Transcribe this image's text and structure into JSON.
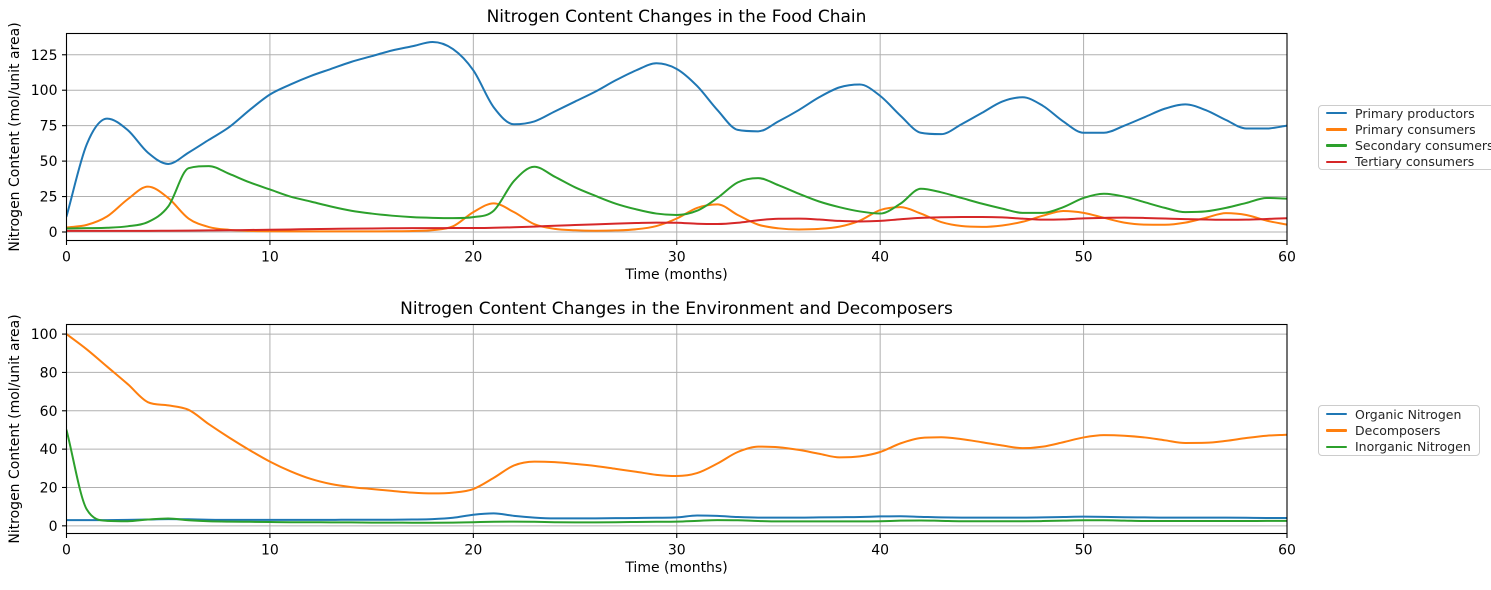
{
  "figure": {
    "background": "#ffffff",
    "grid_color": "#b0b0b0",
    "spine_color": "#000000"
  },
  "chart_data": [
    {
      "type": "line",
      "title": "Nitrogen Content Changes in the Food Chain",
      "xlabel": "Time (months)",
      "ylabel": "Nitrogen Content (mol/unit area)",
      "xlim": [
        0,
        60
      ],
      "ylim": [
        -6,
        140
      ],
      "xticks": [
        0,
        10,
        20,
        30,
        40,
        50,
        60
      ],
      "yticks": [
        0,
        25,
        50,
        75,
        100,
        125
      ],
      "grid": true,
      "legend_position": "right-outside",
      "x_start": 0,
      "x_step": 1,
      "series": [
        {
          "name": "Primary productors",
          "color": "#1f77b4",
          "values": [
            11,
            62,
            80,
            72,
            56,
            48,
            56,
            65,
            74,
            86,
            97,
            104,
            110,
            115,
            120,
            124,
            128,
            131,
            134,
            129,
            114,
            88,
            76,
            78,
            85,
            92,
            99,
            107,
            114,
            119,
            115,
            103,
            86,
            72,
            71,
            78,
            86,
            95,
            102,
            104,
            96,
            82,
            70,
            69,
            76,
            84,
            92,
            95,
            89,
            78,
            70,
            70,
            75,
            81,
            87,
            90,
            86,
            79,
            73,
            73,
            75
          ]
        },
        {
          "name": "Primary consumers",
          "color": "#ff7f0e",
          "values": [
            3.2,
            5,
            11,
            23,
            32,
            24,
            9.5,
            3.5,
            1.5,
            0.8,
            0.5,
            0.4,
            0.4,
            0.4,
            0.4,
            0.4,
            0.5,
            0.7,
            1.3,
            4,
            14,
            20.2,
            14,
            5.5,
            2.2,
            1.2,
            0.9,
            1.1,
            1.9,
            4.2,
            9.5,
            17,
            19.5,
            12,
            5.2,
            2.6,
            1.8,
            2.2,
            3.8,
            8,
            15.5,
            17.5,
            13,
            7,
            4.2,
            3.6,
            4.6,
            7.2,
            11.5,
            14.8,
            13.5,
            10,
            6.6,
            5.2,
            5.1,
            6.6,
            10,
            13.3,
            12,
            8,
            5.2
          ]
        },
        {
          "name": "Secondary consumers",
          "color": "#2ca02c",
          "values": [
            2.5,
            2.7,
            3,
            4,
            7,
            18,
            45,
            46.5,
            41,
            35,
            30,
            25,
            21.5,
            18,
            15,
            13,
            11.5,
            10.5,
            10,
            9.8,
            10.5,
            15,
            36,
            46,
            39,
            31.5,
            25.5,
            20,
            16,
            13,
            12,
            15,
            24,
            35,
            38,
            33,
            27,
            21.5,
            17.5,
            14.5,
            13,
            20,
            30.5,
            28,
            24,
            20,
            16.5,
            13.5,
            13.5,
            17.5,
            24,
            27,
            25,
            21,
            17,
            14,
            14.5,
            17,
            20.5,
            24,
            23.5
          ]
        },
        {
          "name": "Tertiary consumers",
          "color": "#d62728",
          "values": [
            0.8,
            0.8,
            0.8,
            0.8,
            0.8,
            0.9,
            1,
            1.1,
            1.2,
            1.4,
            1.6,
            1.8,
            2,
            2.2,
            2.4,
            2.5,
            2.6,
            2.7,
            2.7,
            2.8,
            2.8,
            3,
            3.3,
            3.8,
            4.4,
            4.9,
            5.4,
            5.9,
            6.3,
            6.6,
            6.5,
            5.8,
            5.6,
            6.5,
            8.3,
            9.3,
            9.4,
            8.8,
            7.8,
            7.4,
            7.8,
            9,
            10,
            10.4,
            10.6,
            10.6,
            10.3,
            9.4,
            8.7,
            8.9,
            9.6,
            10,
            10.1,
            9.9,
            9.5,
            9.1,
            8.8,
            8.6,
            8.7,
            9.2,
            9.7
          ]
        }
      ]
    },
    {
      "type": "line",
      "title": "Nitrogen Content Changes in the Environment and Decomposers",
      "xlabel": "Time (months)",
      "ylabel": "Nitrogen Content (mol/unit area)",
      "xlim": [
        0,
        60
      ],
      "ylim": [
        -4,
        105
      ],
      "xticks": [
        0,
        10,
        20,
        30,
        40,
        50,
        60
      ],
      "yticks": [
        0,
        20,
        40,
        60,
        80,
        100
      ],
      "grid": true,
      "legend_position": "right-outside",
      "x_start": 0,
      "x_step": 1,
      "series": [
        {
          "name": "Organic Nitrogen",
          "color": "#1f77b4",
          "values": [
            3,
            3,
            3,
            3.1,
            3.3,
            3.5,
            3.4,
            3.2,
            3.1,
            3.1,
            3.1,
            3.1,
            3.1,
            3.1,
            3.2,
            3.2,
            3.2,
            3.3,
            3.5,
            4.2,
            5.8,
            6.5,
            5.2,
            4.3,
            3.9,
            3.9,
            3.9,
            4,
            4.1,
            4.2,
            4.4,
            5.4,
            5.2,
            4.6,
            4.3,
            4.3,
            4.3,
            4.4,
            4.5,
            4.6,
            4.9,
            5,
            4.7,
            4.4,
            4.3,
            4.3,
            4.3,
            4.3,
            4.4,
            4.6,
            4.8,
            4.7,
            4.5,
            4.4,
            4.3,
            4.3,
            4.3,
            4.3,
            4.2,
            4.1,
            4.1
          ]
        },
        {
          "name": "Decomposers",
          "color": "#ff7f0e",
          "values": [
            100,
            92,
            83,
            74,
            64.5,
            62.8,
            60.5,
            53,
            46,
            39.5,
            33.5,
            28.5,
            24.5,
            21.8,
            20.2,
            19.2,
            18.2,
            17.3,
            16.9,
            17.3,
            19.2,
            25,
            31.5,
            33.5,
            33.2,
            32.3,
            31.2,
            29.7,
            28.2,
            26.6,
            26,
            27.5,
            32.5,
            38.5,
            41.3,
            41,
            39.6,
            37.6,
            35.7,
            36.2,
            38.5,
            43,
            45.8,
            46.2,
            45.2,
            43.6,
            41.9,
            40.5,
            41.3,
            43.6,
            46.1,
            47.3,
            47,
            46.1,
            44.6,
            43.2,
            43.3,
            44.3,
            45.8,
            47,
            47.5
          ]
        },
        {
          "name": "Inorganic Nitrogen",
          "color": "#2ca02c",
          "values": [
            50,
            8.5,
            2.6,
            2.4,
            3.3,
            3.8,
            2.9,
            2.4,
            2.2,
            2.1,
            2,
            1.9,
            1.9,
            1.8,
            1.8,
            1.7,
            1.7,
            1.6,
            1.6,
            1.7,
            1.9,
            2.1,
            2.2,
            2.1,
            1.9,
            1.8,
            1.8,
            1.9,
            2,
            2.1,
            2.2,
            2.6,
            3,
            2.9,
            2.5,
            2.3,
            2.3,
            2.3,
            2.3,
            2.3,
            2.4,
            2.7,
            2.8,
            2.6,
            2.4,
            2.4,
            2.4,
            2.4,
            2.5,
            2.7,
            2.9,
            2.9,
            2.7,
            2.5,
            2.5,
            2.5,
            2.5,
            2.5,
            2.5,
            2.6,
            2.6
          ]
        }
      ]
    }
  ]
}
